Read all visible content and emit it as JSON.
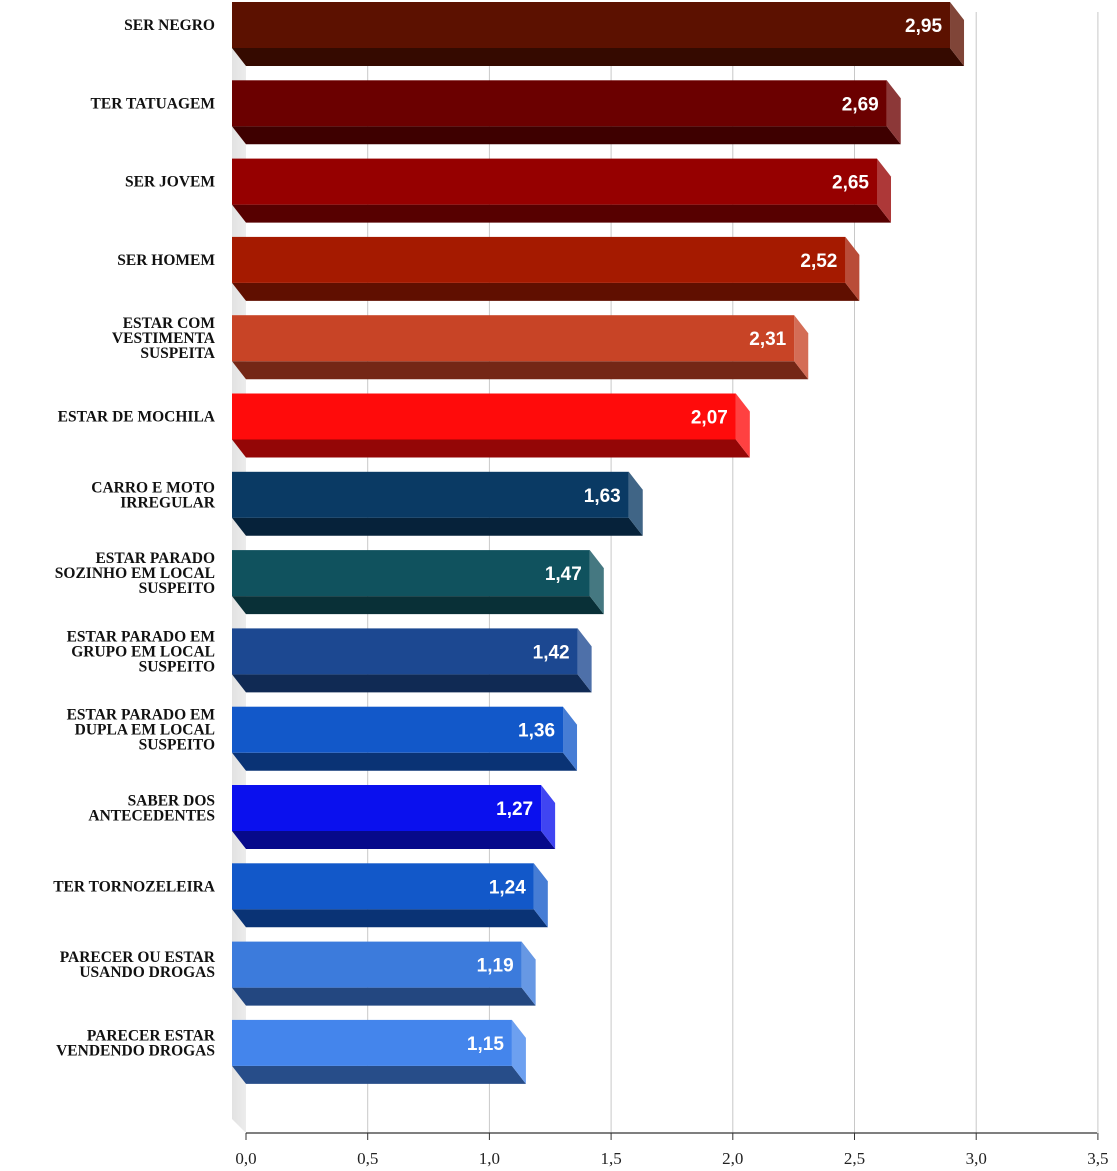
{
  "chart_data": {
    "type": "bar",
    "orientation": "horizontal",
    "categories": [
      "SER NEGRO",
      "TER TATUAGEM",
      "SER JOVEM",
      "SER HOMEM",
      "ESTAR COM VESTIMENTA SUSPEITA",
      "ESTAR DE MOCHILA",
      "CARRO E MOTO IRREGULAR",
      "ESTAR PARADO SOZINHO EM LOCAL SUSPEITO",
      "ESTAR PARADO EM GRUPO EM LOCAL SUSPEITO",
      "ESTAR PARADO EM DUPLA EM LOCAL SUSPEITO",
      "SABER DOS ANTECEDENTES",
      "TER TORNOZELEIRA",
      "PARECER OU ESTAR USANDO DROGAS",
      "PARECER ESTAR VENDENDO DROGAS"
    ],
    "category_lines": [
      [
        "SER NEGRO"
      ],
      [
        "TER TATUAGEM"
      ],
      [
        "SER JOVEM"
      ],
      [
        "SER HOMEM"
      ],
      [
        "ESTAR COM",
        "VESTIMENTA",
        "SUSPEITA"
      ],
      [
        "ESTAR DE MOCHILA"
      ],
      [
        "CARRO E MOTO",
        "IRREGULAR"
      ],
      [
        "ESTAR PARADO",
        "SOZINHO EM LOCAL",
        "SUSPEITO"
      ],
      [
        "ESTAR PARADO EM",
        "GRUPO EM LOCAL",
        "SUSPEITO"
      ],
      [
        "ESTAR PARADO EM",
        "DUPLA EM LOCAL",
        "SUSPEITO"
      ],
      [
        "SABER DOS",
        "ANTECEDENTES"
      ],
      [
        "TER TORNOZELEIRA"
      ],
      [
        "PARECER OU ESTAR",
        "USANDO DROGAS"
      ],
      [
        "PARECER ESTAR",
        "VENDENDO DROGAS"
      ]
    ],
    "values": [
      2.95,
      2.69,
      2.65,
      2.52,
      2.31,
      2.07,
      1.63,
      1.47,
      1.42,
      1.36,
      1.27,
      1.24,
      1.19,
      1.15
    ],
    "value_labels": [
      "2,95",
      "2,69",
      "2,65",
      "2,52",
      "2,31",
      "2,07",
      "1,63",
      "1,47",
      "1,42",
      "1,36",
      "1,27",
      "1,24",
      "1,19",
      "1,15"
    ],
    "colors": [
      "#5c1100",
      "#6b0000",
      "#960000",
      "#a51a00",
      "#c84426",
      "#ff0b0b",
      "#0a3a64",
      "#10525e",
      "#1c4891",
      "#1258c9",
      "#0a10ee",
      "#1258c9",
      "#3c7bdc",
      "#4485ec"
    ],
    "xlim": [
      0,
      3.5
    ],
    "xticks": [
      0,
      0.5,
      1,
      1.5,
      2,
      2.5,
      3,
      3.5
    ],
    "xtick_labels": [
      "0,0",
      "0,5",
      "1,0",
      "1,5",
      "2,0",
      "2,5",
      "3,0",
      "3,5"
    ],
    "grid": true,
    "title": "",
    "xlabel": "",
    "ylabel": ""
  }
}
